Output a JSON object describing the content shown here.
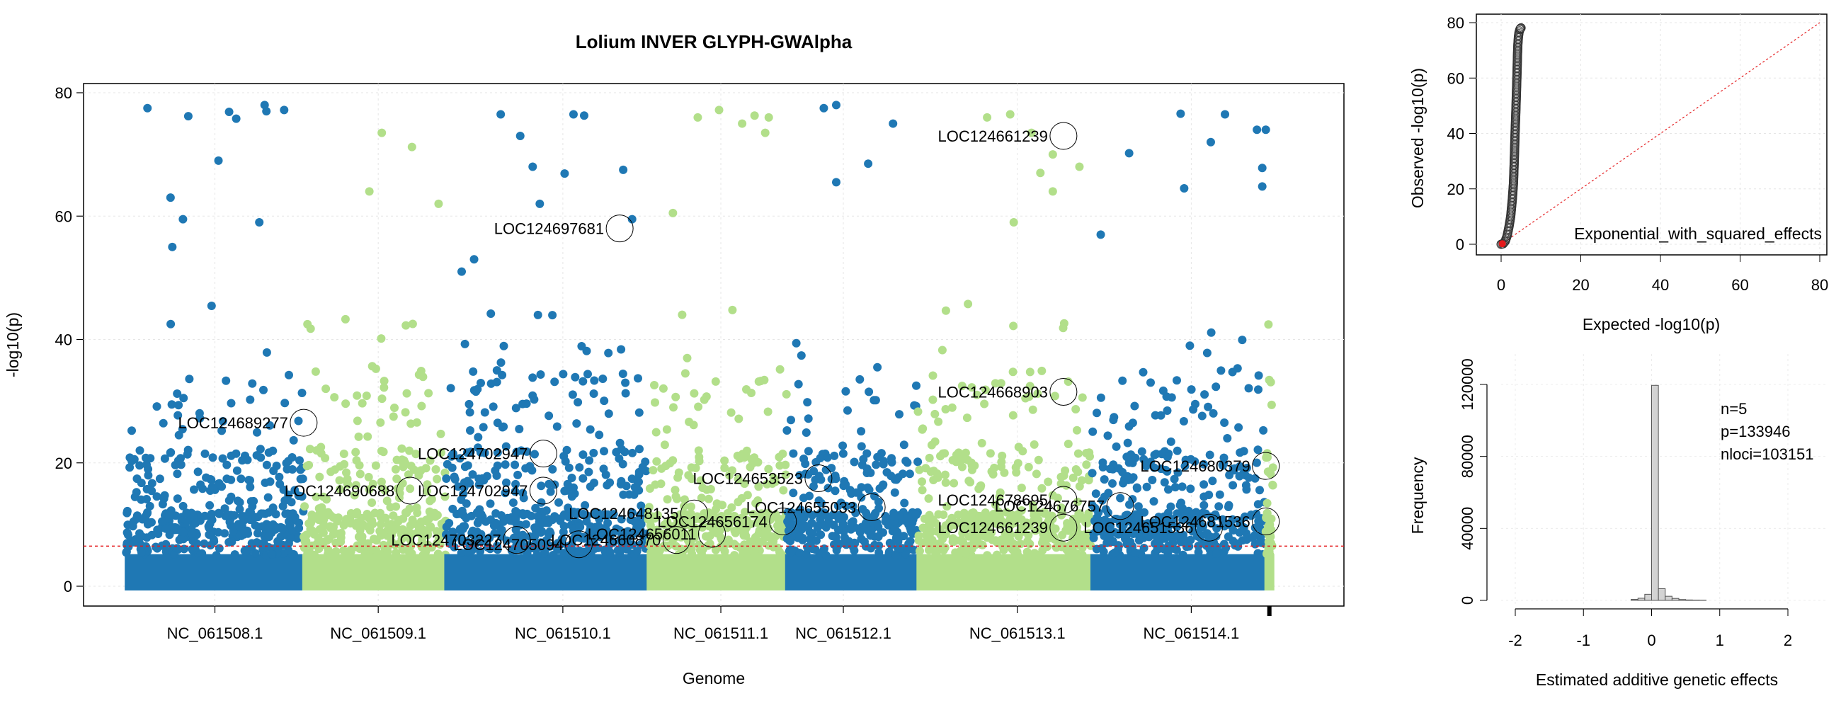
{
  "chart_data": [
    {
      "type": "scatter",
      "subtype": "manhattan",
      "title": "Lolium INVER GLYPH-GWAlpha",
      "xlabel": "Genome",
      "ylabel": "-log10(p)",
      "ylim": [
        0,
        80
      ],
      "yticks": [
        0,
        20,
        40,
        60,
        80
      ],
      "threshold": 6.5,
      "colors": {
        "odd": "#1f78b4",
        "even": "#b2df8a",
        "threshold": "#e41a1c",
        "axis_marker": "#000000"
      },
      "chromosomes": [
        {
          "name": "NC_061508.1",
          "start": 0,
          "end": 1.0,
          "color": "#1f78b4"
        },
        {
          "name": "NC_061509.1",
          "start": 1.0,
          "end": 1.8,
          "color": "#b2df8a"
        },
        {
          "name": "NC_061510.1",
          "start": 1.8,
          "end": 2.94,
          "color": "#1f78b4"
        },
        {
          "name": "NC_061511.1",
          "start": 2.94,
          "end": 3.72,
          "color": "#b2df8a"
        },
        {
          "name": "NC_061512.1",
          "start": 3.72,
          "end": 4.46,
          "color": "#1f78b4"
        },
        {
          "name": "NC_061513.1",
          "start": 4.46,
          "end": 5.44,
          "color": "#b2df8a"
        },
        {
          "name": "NC_061514.1",
          "start": 5.44,
          "end": 6.42,
          "color": "#1f78b4"
        },
        {
          "name": "",
          "start": 6.42,
          "end": 6.46,
          "color": "#b2df8a"
        }
      ],
      "xticks": [
        {
          "label": "NC_061508.1",
          "x": 0.5
        },
        {
          "label": "NC_061509.1",
          "x": 1.42
        },
        {
          "label": "NC_061510.1",
          "x": 2.46
        },
        {
          "label": "NC_061511.1",
          "x": 3.35
        },
        {
          "label": "NC_061512.1",
          "x": 4.04
        },
        {
          "label": "NC_061513.1",
          "x": 5.02
        },
        {
          "label": "NC_061514.1",
          "x": 6.0
        }
      ],
      "xlim": [
        -0.24,
        6.86
      ],
      "peaks": [
        {
          "x": 0.12,
          "y": 77.5
        },
        {
          "x": 0.35,
          "y": 76.2
        },
        {
          "x": 0.52,
          "y": 69.0
        },
        {
          "x": 0.58,
          "y": 76.9
        },
        {
          "x": 0.62,
          "y": 75.8
        },
        {
          "x": 0.75,
          "y": 59.0
        },
        {
          "x": 0.78,
          "y": 78.0
        },
        {
          "x": 0.79,
          "y": 77.0
        },
        {
          "x": 0.89,
          "y": 77.2
        },
        {
          "x": 0.25,
          "y": 63.0
        },
        {
          "x": 0.26,
          "y": 55.0
        },
        {
          "x": 0.32,
          "y": 59.5
        },
        {
          "x": 1.37,
          "y": 64.0
        },
        {
          "x": 1.44,
          "y": 73.5
        },
        {
          "x": 1.61,
          "y": 71.2
        },
        {
          "x": 1.76,
          "y": 62.0
        },
        {
          "x": 1.89,
          "y": 51.0
        },
        {
          "x": 1.96,
          "y": 53.0
        },
        {
          "x": 2.11,
          "y": 76.5
        },
        {
          "x": 2.22,
          "y": 73.0
        },
        {
          "x": 2.29,
          "y": 68.0
        },
        {
          "x": 2.33,
          "y": 62.0
        },
        {
          "x": 2.47,
          "y": 66.9
        },
        {
          "x": 2.52,
          "y": 76.5
        },
        {
          "x": 2.58,
          "y": 76.3
        },
        {
          "x": 2.8,
          "y": 67.5
        },
        {
          "x": 2.85,
          "y": 59.5
        },
        {
          "x": 3.22,
          "y": 76.0
        },
        {
          "x": 3.34,
          "y": 77.2
        },
        {
          "x": 3.47,
          "y": 75.0
        },
        {
          "x": 3.54,
          "y": 76.3
        },
        {
          "x": 3.6,
          "y": 73.5
        },
        {
          "x": 3.62,
          "y": 76.0
        },
        {
          "x": 3.93,
          "y": 77.5
        },
        {
          "x": 4.0,
          "y": 78.0
        },
        {
          "x": 4.0,
          "y": 65.5
        },
        {
          "x": 4.18,
          "y": 68.5
        },
        {
          "x": 4.32,
          "y": 75.0
        },
        {
          "x": 4.85,
          "y": 76.0
        },
        {
          "x": 4.98,
          "y": 76.5
        },
        {
          "x": 5.1,
          "y": 73.5
        },
        {
          "x": 5.15,
          "y": 67.0
        },
        {
          "x": 5.22,
          "y": 70.0
        },
        {
          "x": 5.37,
          "y": 68.0
        },
        {
          "x": 5.49,
          "y": 57.0
        },
        {
          "x": 5.65,
          "y": 70.2
        },
        {
          "x": 5.94,
          "y": 76.6
        },
        {
          "x": 5.96,
          "y": 64.5
        },
        {
          "x": 6.11,
          "y": 72.0
        },
        {
          "x": 6.19,
          "y": 76.5
        },
        {
          "x": 6.37,
          "y": 74.0
        },
        {
          "x": 6.4,
          "y": 67.8
        },
        {
          "x": 6.4,
          "y": 64.8
        },
        {
          "x": 6.42,
          "y": 74.0
        },
        {
          "x": 3.08,
          "y": 60.5
        },
        {
          "x": 5.0,
          "y": 59.0
        },
        {
          "x": 5.22,
          "y": 64.0
        }
      ],
      "annotations": [
        {
          "label": "LOC124661239",
          "x": 5.28,
          "y": 73.0
        },
        {
          "label": "LOC124697681",
          "x": 2.78,
          "y": 58.0
        },
        {
          "label": "LOC124668903",
          "x": 5.28,
          "y": 31.5
        },
        {
          "label": "LOC124689277",
          "x": 1.0,
          "y": 26.5
        },
        {
          "label": "LOC124702947",
          "x": 2.35,
          "y": 21.5
        },
        {
          "label": "LOC124702947",
          "x": 2.35,
          "y": 15.5
        },
        {
          "label": "LOC124690688",
          "x": 1.6,
          "y": 15.5
        },
        {
          "label": "LOC124680379",
          "x": 6.42,
          "y": 19.5
        },
        {
          "label": "LOC124653523",
          "x": 3.9,
          "y": 17.5
        },
        {
          "label": "LOC124678695",
          "x": 5.28,
          "y": 14.0
        },
        {
          "label": "LOC124655033",
          "x": 4.2,
          "y": 12.8
        },
        {
          "label": "LOC124676757",
          "x": 5.6,
          "y": 13.0
        },
        {
          "label": "LOC124648135",
          "x": 3.2,
          "y": 11.8
        },
        {
          "label": "LOC124656174",
          "x": 3.7,
          "y": 10.5
        },
        {
          "label": "LOC124661239",
          "x": 5.28,
          "y": 9.5
        },
        {
          "label": "LOC124681536",
          "x": 6.42,
          "y": 10.5
        },
        {
          "label": "LOC124651536",
          "x": 6.1,
          "y": 9.5
        },
        {
          "label": "LOC124656011",
          "x": 3.3,
          "y": 8.5
        },
        {
          "label": "LOC124703227",
          "x": 2.2,
          "y": 7.5
        },
        {
          "label": "LOC124705094",
          "x": 2.55,
          "y": 6.8
        },
        {
          "label": "LOC124660870",
          "x": 3.1,
          "y": 7.5
        }
      ]
    },
    {
      "type": "scatter",
      "subtype": "qq",
      "xlabel": "Expected -log10(p)",
      "ylabel": "Observed -log10(p)",
      "xlim": [
        0,
        80
      ],
      "ylim": [
        0,
        80
      ],
      "xticks": [
        0,
        20,
        40,
        60,
        80
      ],
      "yticks": [
        0,
        20,
        40,
        60,
        80
      ],
      "legend": "Exponential_with_squared_effects",
      "points": [
        [
          0.0,
          0.0
        ],
        [
          0.5,
          0.2
        ],
        [
          1.0,
          1.0
        ],
        [
          1.5,
          3.0
        ],
        [
          2.0,
          6.5
        ],
        [
          2.4,
          10.0
        ],
        [
          2.8,
          16.0
        ],
        [
          3.1,
          22.0
        ],
        [
          3.3,
          30.0
        ],
        [
          3.5,
          40.0
        ],
        [
          3.7,
          48.0
        ],
        [
          3.85,
          55.0
        ],
        [
          4.0,
          62.0
        ],
        [
          4.1,
          68.0
        ],
        [
          4.2,
          72.0
        ],
        [
          4.35,
          75.0
        ],
        [
          4.5,
          76.5
        ],
        [
          4.7,
          77.5
        ],
        [
          4.9,
          78.0
        ],
        [
          5.1,
          78.2
        ]
      ],
      "reference_line": [
        [
          0,
          0
        ],
        [
          80,
          80
        ]
      ]
    },
    {
      "type": "bar",
      "subtype": "histogram",
      "xlabel": "Estimated additive genetic effects",
      "ylabel": "Frequency",
      "xlim": [
        -2.1,
        2.25
      ],
      "ylim": [
        0,
        120000
      ],
      "xticks": [
        -2,
        -1,
        0,
        1,
        2
      ],
      "yticks": [
        0,
        40000,
        80000,
        120000
      ],
      "bin_width": 0.1,
      "bins": [
        {
          "x0": -0.3,
          "count": 600
        },
        {
          "x0": -0.2,
          "count": 1200
        },
        {
          "x0": -0.1,
          "count": 3400
        },
        {
          "x0": 0.0,
          "count": 119500
        },
        {
          "x0": 0.1,
          "count": 6500
        },
        {
          "x0": 0.2,
          "count": 2300
        },
        {
          "x0": 0.3,
          "count": 1100
        },
        {
          "x0": 0.4,
          "count": 500
        },
        {
          "x0": 0.5,
          "count": 250
        },
        {
          "x0": 0.6,
          "count": 150
        },
        {
          "x0": 0.7,
          "count": 100
        }
      ],
      "legend": [
        "n=5",
        "p=133946",
        "nloci=103151"
      ]
    }
  ]
}
